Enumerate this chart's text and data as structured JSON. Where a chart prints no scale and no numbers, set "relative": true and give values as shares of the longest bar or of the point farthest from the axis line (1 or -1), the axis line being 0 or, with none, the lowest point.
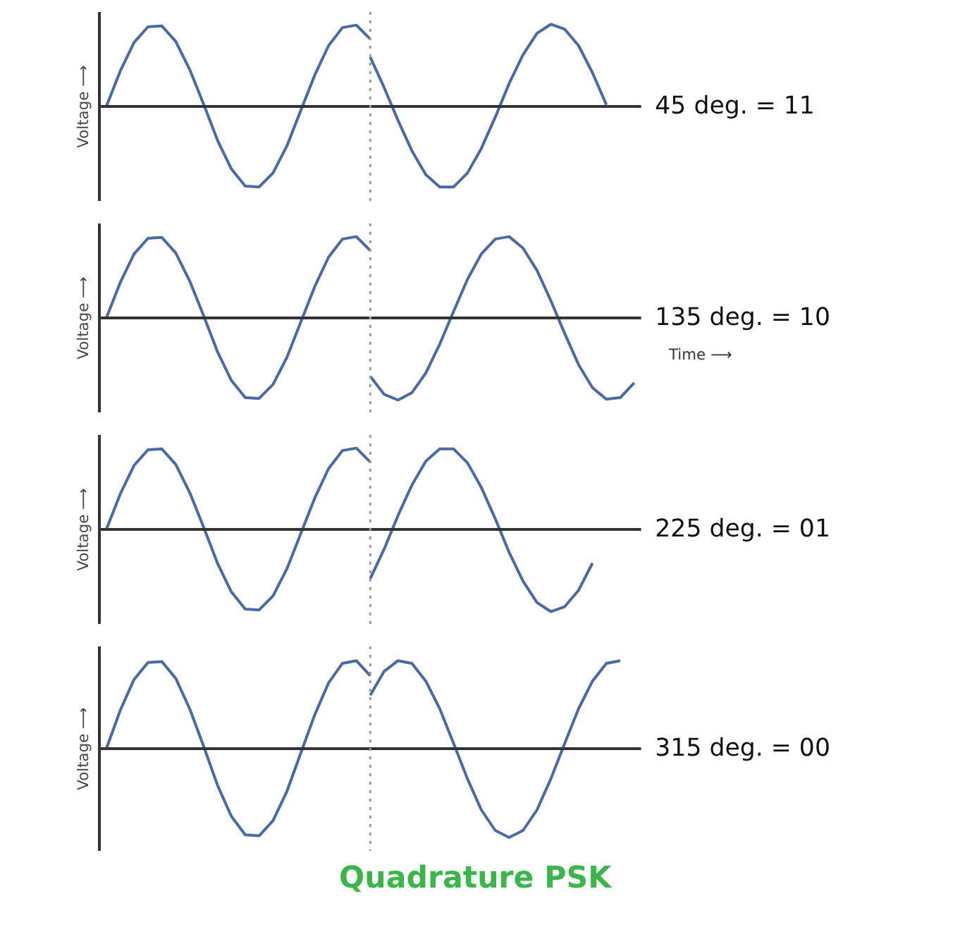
{
  "chart_data": [
    {
      "type": "line",
      "relative": true,
      "ylabel": "Voltage ⟶",
      "grid": false,
      "annotations": [
        "45 deg. = 11"
      ],
      "categories": [
        null,
        null,
        null,
        null,
        null,
        null,
        null,
        null,
        null,
        null,
        null,
        null,
        null,
        null,
        null,
        null,
        null,
        null,
        null,
        null,
        null,
        null,
        null,
        null,
        null,
        null,
        null,
        null,
        null,
        null,
        null,
        null,
        null,
        null,
        null,
        null,
        null,
        null,
        null
      ],
      "series": [
        {
          "color": "#4a6aa5",
          "values": [
            0,
            0.43,
            0.78,
            0.97,
            0.98,
            0.79,
            0.45,
            0.03,
            -0.41,
            -0.76,
            -0.97,
            -0.98,
            -0.81,
            -0.48,
            -0.05,
            0.38,
            0.74,
            0.96,
            0.99,
            0.82,
            null,
            null,
            null,
            null,
            null,
            null,
            null,
            null,
            null,
            null,
            null,
            null,
            null,
            null,
            null,
            null,
            null,
            null,
            null
          ]
        },
        {
          "color": "#4a6aa5",
          "values": [
            null,
            null,
            null,
            null,
            null,
            null,
            null,
            null,
            null,
            null,
            null,
            null,
            null,
            null,
            null,
            null,
            null,
            null,
            null,
            0.6,
            0.23,
            -0.17,
            -0.54,
            -0.83,
            -0.98,
            -0.98,
            -0.81,
            -0.51,
            -0.13,
            0.28,
            0.63,
            0.89,
            1.0,
            0.94,
            0.74,
            0.41,
            0.02,
            null,
            null
          ]
        }
      ]
    },
    {
      "type": "line",
      "relative": true,
      "ylabel": "Voltage ⟶",
      "xlabel": "Time ⟶",
      "grid": false,
      "annotations": [
        "135 deg. = 10"
      ],
      "categories": [
        null,
        null,
        null,
        null,
        null,
        null,
        null,
        null,
        null,
        null,
        null,
        null,
        null,
        null,
        null,
        null,
        null,
        null,
        null,
        null,
        null,
        null,
        null,
        null,
        null,
        null,
        null,
        null,
        null,
        null,
        null,
        null,
        null,
        null,
        null,
        null,
        null,
        null,
        null
      ],
      "series": [
        {
          "color": "#4a6aa5",
          "values": [
            0,
            0.43,
            0.78,
            0.97,
            0.98,
            0.79,
            0.45,
            0.03,
            -0.41,
            -0.76,
            -0.97,
            -0.98,
            -0.81,
            -0.48,
            -0.05,
            0.38,
            0.74,
            0.96,
            0.99,
            0.82,
            null,
            null,
            null,
            null,
            null,
            null,
            null,
            null,
            null,
            null,
            null,
            null,
            null,
            null,
            null,
            null,
            null,
            null,
            null
          ]
        },
        {
          "color": "#4a6aa5",
          "values": [
            null,
            null,
            null,
            null,
            null,
            null,
            null,
            null,
            null,
            null,
            null,
            null,
            null,
            null,
            null,
            null,
            null,
            null,
            null,
            -0.71,
            -0.93,
            -1.0,
            -0.91,
            -0.67,
            -0.32,
            0.08,
            0.47,
            0.78,
            0.96,
            0.99,
            0.85,
            0.58,
            0.21,
            -0.19,
            -0.57,
            -0.85,
            -0.99,
            -0.97,
            -0.79
          ]
        }
      ]
    },
    {
      "type": "line",
      "relative": true,
      "ylabel": "Voltage ⟶",
      "grid": false,
      "annotations": [
        "225 deg. = 01"
      ],
      "categories": [
        null,
        null,
        null,
        null,
        null,
        null,
        null,
        null,
        null,
        null,
        null,
        null,
        null,
        null,
        null,
        null,
        null,
        null,
        null,
        null,
        null,
        null,
        null,
        null,
        null,
        null,
        null,
        null,
        null,
        null,
        null,
        null,
        null,
        null,
        null,
        null,
        null,
        null,
        null
      ],
      "series": [
        {
          "color": "#4a6aa5",
          "values": [
            0,
            0.43,
            0.78,
            0.97,
            0.98,
            0.79,
            0.45,
            0.03,
            -0.41,
            -0.76,
            -0.97,
            -0.98,
            -0.81,
            -0.48,
            -0.05,
            0.38,
            0.74,
            0.96,
            0.99,
            0.82,
            null,
            null,
            null,
            null,
            null,
            null,
            null,
            null,
            null,
            null,
            null,
            null,
            null,
            null,
            null,
            null,
            null,
            null,
            null
          ]
        },
        {
          "color": "#4a6aa5",
          "values": [
            null,
            null,
            null,
            null,
            null,
            null,
            null,
            null,
            null,
            null,
            null,
            null,
            null,
            null,
            null,
            null,
            null,
            null,
            null,
            -0.6,
            -0.24,
            0.17,
            0.54,
            0.83,
            0.98,
            0.98,
            0.81,
            0.51,
            0.13,
            -0.28,
            -0.63,
            -0.89,
            -1.0,
            -0.94,
            -0.74,
            -0.41,
            null,
            null,
            null
          ]
        }
      ]
    },
    {
      "type": "line",
      "relative": true,
      "ylabel": "Voltage ⟶",
      "grid": false,
      "title": "Quadrature PSK",
      "annotations": [
        "315 deg. = 00"
      ],
      "categories": [
        null,
        null,
        null,
        null,
        null,
        null,
        null,
        null,
        null,
        null,
        null,
        null,
        null,
        null,
        null,
        null,
        null,
        null,
        null,
        null,
        null,
        null,
        null,
        null,
        null,
        null,
        null,
        null,
        null,
        null,
        null,
        null,
        null,
        null,
        null,
        null,
        null,
        null,
        null
      ],
      "series": [
        {
          "color": "#4a6aa5",
          "values": [
            0,
            0.43,
            0.78,
            0.97,
            0.98,
            0.79,
            0.45,
            0.03,
            -0.41,
            -0.76,
            -0.97,
            -0.98,
            -0.81,
            -0.48,
            -0.05,
            0.38,
            0.74,
            0.96,
            0.99,
            0.82,
            null,
            null,
            null,
            null,
            null,
            null,
            null,
            null,
            null,
            null,
            null,
            null,
            null,
            null,
            null,
            null,
            null,
            null,
            null
          ]
        },
        {
          "color": "#4a6aa5",
          "values": [
            null,
            null,
            null,
            null,
            null,
            null,
            null,
            null,
            null,
            null,
            null,
            null,
            null,
            null,
            null,
            null,
            null,
            null,
            null,
            0.6,
            0.87,
            0.99,
            0.96,
            0.76,
            0.45,
            0.06,
            -0.34,
            -0.69,
            -0.92,
            -1.0,
            -0.92,
            -0.69,
            -0.34,
            0.06,
            0.45,
            0.76,
            0.96,
            0.99,
            null
          ]
        }
      ]
    }
  ]
}
